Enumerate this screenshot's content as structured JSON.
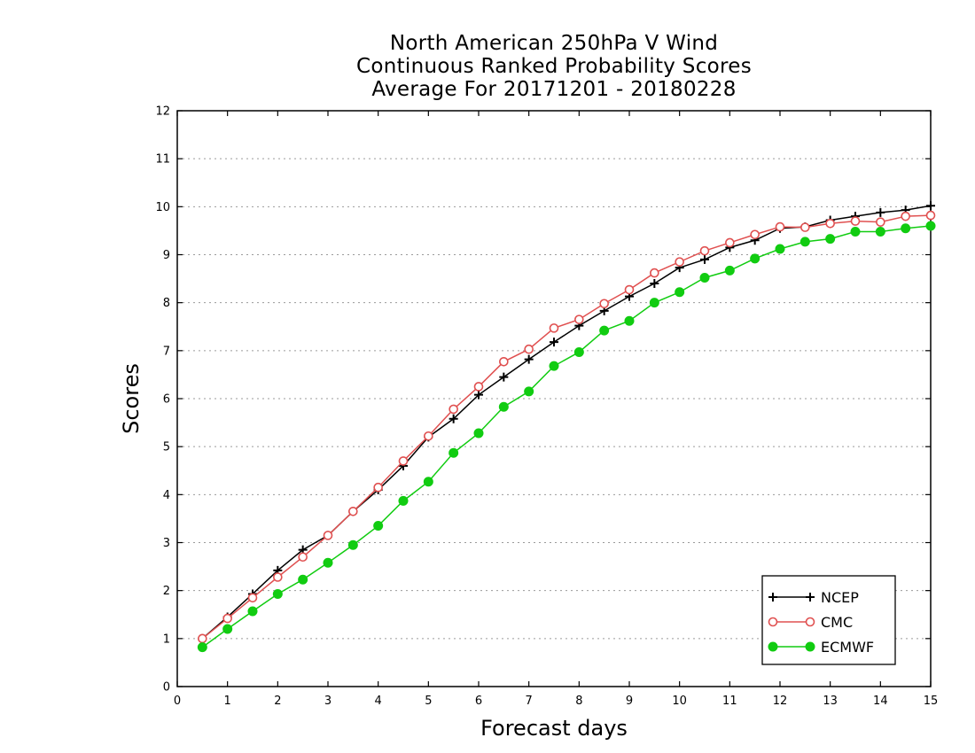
{
  "chart_data": {
    "type": "line",
    "title_lines": [
      "North American 250hPa V Wind",
      "Continuous Ranked Probability Scores",
      "Average For 20171201 - 20180228"
    ],
    "xlabel": "Forecast days",
    "ylabel": "Scores",
    "xlim": [
      0,
      15
    ],
    "ylim": [
      0,
      12
    ],
    "xticks": [
      0,
      1,
      2,
      3,
      4,
      5,
      6,
      7,
      8,
      9,
      10,
      11,
      12,
      13,
      14,
      15
    ],
    "yticks": [
      0,
      1,
      2,
      3,
      4,
      5,
      6,
      7,
      8,
      9,
      10,
      11,
      12
    ],
    "grid": "horizontal dotted",
    "legend_position": "bottom-right",
    "x": [
      0.5,
      1,
      1.5,
      2,
      2.5,
      3,
      3.5,
      4,
      4.5,
      5,
      5.5,
      6,
      6.5,
      7,
      7.5,
      8,
      8.5,
      9,
      9.5,
      10,
      10.5,
      11,
      11.5,
      12,
      12.5,
      13,
      13.5,
      14,
      14.5,
      15
    ],
    "series": [
      {
        "name": "NCEP",
        "color": "#000000",
        "marker": "plus",
        "values": [
          1.0,
          1.45,
          1.93,
          2.42,
          2.85,
          3.15,
          3.65,
          4.1,
          4.6,
          5.2,
          5.58,
          6.08,
          6.45,
          6.82,
          7.18,
          7.52,
          7.83,
          8.13,
          8.4,
          8.73,
          8.9,
          9.15,
          9.3,
          9.55,
          9.58,
          9.72,
          9.8,
          9.88,
          9.93,
          10.02
        ]
      },
      {
        "name": "CMC",
        "color": "#e05050",
        "marker": "open-circle",
        "values": [
          1.0,
          1.42,
          1.85,
          2.28,
          2.7,
          3.15,
          3.65,
          4.15,
          4.7,
          5.22,
          5.78,
          6.25,
          6.77,
          7.03,
          7.47,
          7.65,
          7.98,
          8.27,
          8.62,
          8.85,
          9.08,
          9.25,
          9.42,
          9.58,
          9.57,
          9.65,
          9.7,
          9.68,
          9.8,
          9.82
        ]
      },
      {
        "name": "ECMWF",
        "color": "#11cc11",
        "marker": "filled-circle",
        "values": [
          0.82,
          1.2,
          1.57,
          1.93,
          2.23,
          2.58,
          2.95,
          3.35,
          3.87,
          4.27,
          4.87,
          5.28,
          5.83,
          6.15,
          6.68,
          6.97,
          7.42,
          7.62,
          8.0,
          8.22,
          8.52,
          8.67,
          8.92,
          9.12,
          9.27,
          9.33,
          9.48,
          9.48,
          9.55,
          9.6
        ]
      }
    ]
  }
}
